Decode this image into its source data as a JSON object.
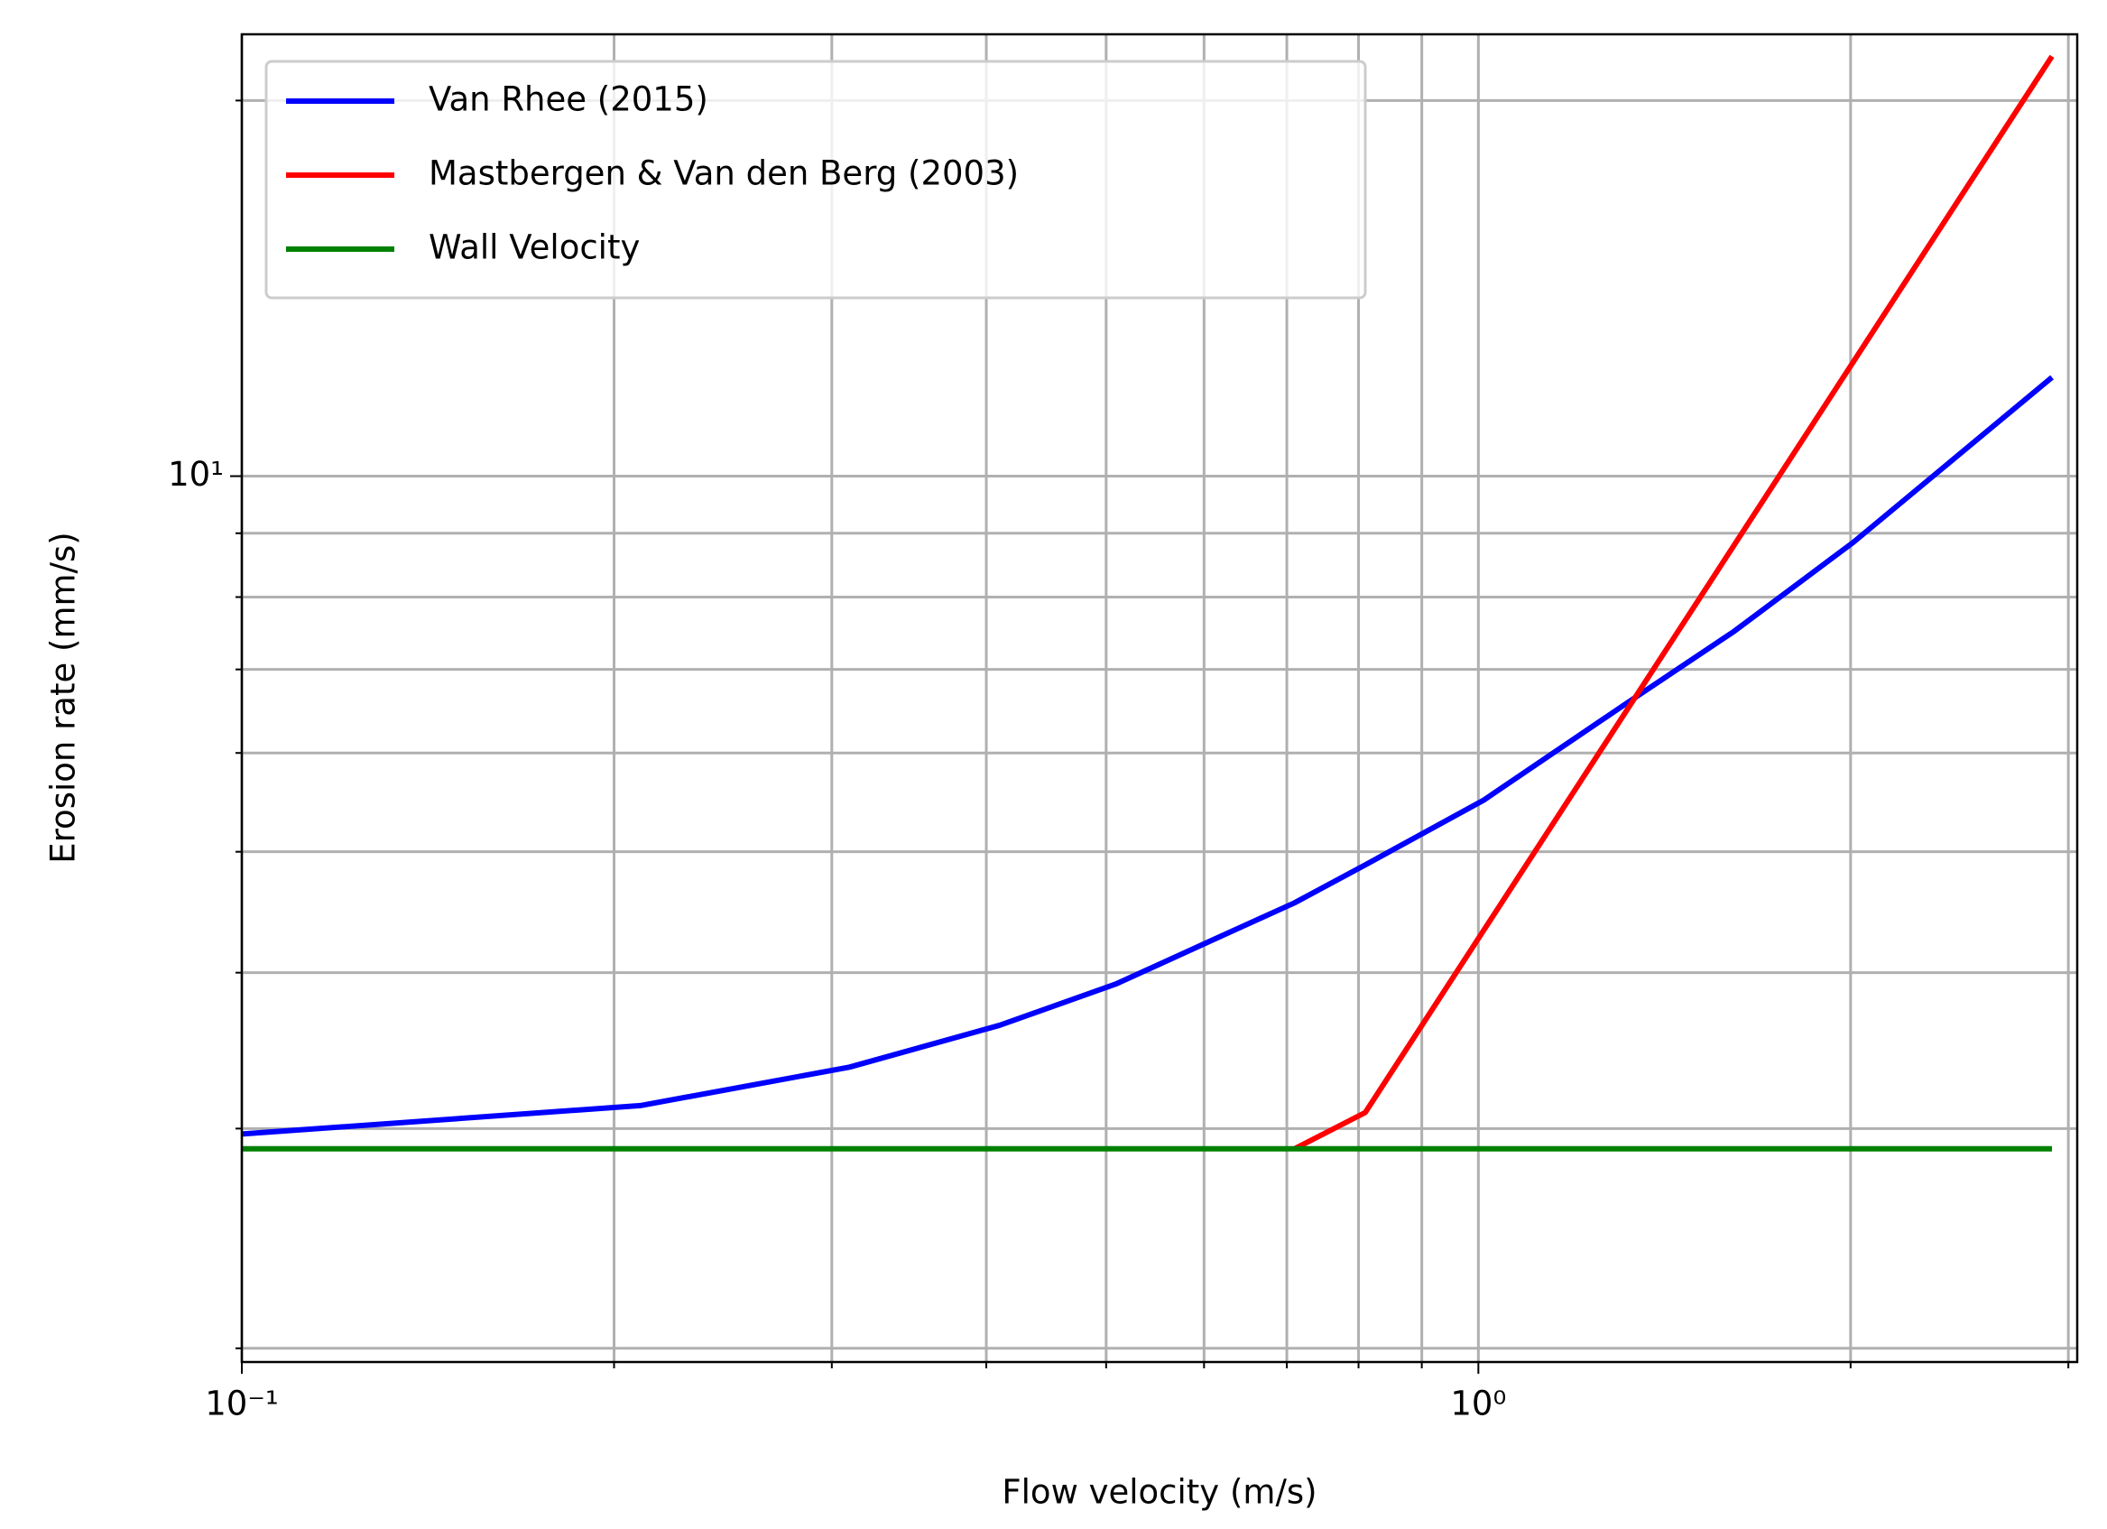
{
  "chart_data": {
    "type": "line",
    "xlabel": "Flow velocity (m/s)",
    "ylabel": "Erosion rate (mm/s)",
    "log_x": true,
    "log_y": true,
    "grid": true,
    "legend": "upper left",
    "xlim": [
      0.1,
      3.05
    ],
    "ylim": [
      1.95,
      22.6
    ],
    "xticks": [
      {
        "value": 0.1,
        "label": "10⁻¹"
      },
      {
        "value": 1,
        "label": "10⁰"
      }
    ],
    "xminorticks": [
      0.2,
      0.3,
      0.4,
      0.5,
      0.6,
      0.7,
      0.8,
      0.9,
      2,
      3
    ],
    "yticks": [
      {
        "value": 10,
        "label": "10¹"
      }
    ],
    "yminorticks": [
      2,
      3,
      4,
      5,
      6,
      7,
      8,
      9,
      20
    ],
    "series": [
      {
        "name": "Van Rhee (2015)",
        "color": "#0000ff",
        "x": [
          0.1,
          0.21,
          0.31,
          0.41,
          0.51,
          0.61,
          0.71,
          0.81,
          1.01,
          1.31,
          1.61,
          2.01,
          2.91
        ],
        "values": [
          2.97,
          3.13,
          3.36,
          3.63,
          3.92,
          4.25,
          4.55,
          4.88,
          5.5,
          6.55,
          7.51,
          8.85,
          12.0
        ]
      },
      {
        "name": "Mastbergen & Van den Berg (2003)",
        "color": "#ff0000",
        "x": [
          0.71,
          0.81,
          2.91
        ],
        "values": [
          2.89,
          3.09,
          21.7
        ]
      },
      {
        "name": "Wall Velocity",
        "color": "#008000",
        "x": [
          0.1,
          2.91
        ],
        "values": [
          2.89,
          2.89
        ]
      }
    ]
  }
}
